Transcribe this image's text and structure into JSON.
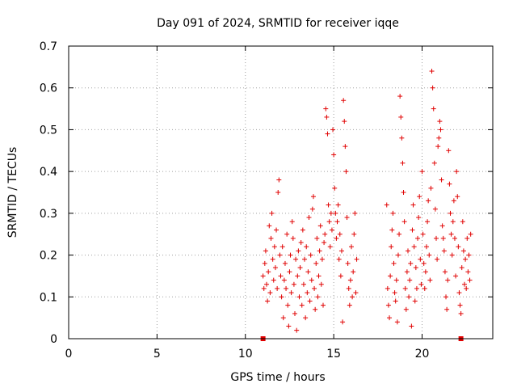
{
  "chart_data": {
    "type": "scatter",
    "title": "Day 091 of 2024, SRMTID for receiver iqqe",
    "xlabel": "GPS time / hours",
    "ylabel": "SRMTID / TECUs",
    "xlim": [
      0,
      24
    ],
    "ylim": [
      0,
      0.7
    ],
    "x_ticks": [
      0,
      5,
      10,
      15,
      20
    ],
    "y_ticks": [
      0,
      0.1,
      0.2,
      0.3,
      0.4,
      0.5,
      0.6,
      0.7
    ],
    "x_tick_labels": [
      "0",
      "5",
      "10",
      "15",
      "20"
    ],
    "y_tick_labels": [
      "0",
      "0.1",
      "0.2",
      "0.3",
      "0.4",
      "0.5",
      "0.6",
      "0.7"
    ],
    "grid": true,
    "marker": "+",
    "color": "#e00000",
    "series": [
      {
        "name": "SRMTID",
        "points": [
          [
            11.0,
            0.15
          ],
          [
            11.05,
            0.12
          ],
          [
            11.1,
            0.18
          ],
          [
            11.15,
            0.21
          ],
          [
            11.2,
            0.13
          ],
          [
            11.25,
            0.09
          ],
          [
            11.3,
            0.16
          ],
          [
            11.35,
            0.27
          ],
          [
            11.4,
            0.11
          ],
          [
            11.45,
            0.24
          ],
          [
            11.5,
            0.3
          ],
          [
            11.55,
            0.19
          ],
          [
            11.6,
            0.14
          ],
          [
            11.65,
            0.22
          ],
          [
            11.7,
            0.17
          ],
          [
            11.75,
            0.26
          ],
          [
            11.8,
            0.12
          ],
          [
            11.85,
            0.35
          ],
          [
            11.9,
            0.38
          ],
          [
            11.95,
            0.2
          ],
          [
            12.0,
            0.15
          ],
          [
            12.05,
            0.1
          ],
          [
            12.1,
            0.22
          ],
          [
            12.15,
            0.05
          ],
          [
            12.2,
            0.14
          ],
          [
            12.25,
            0.18
          ],
          [
            12.3,
            0.12
          ],
          [
            12.35,
            0.25
          ],
          [
            12.4,
            0.08
          ],
          [
            12.45,
            0.03
          ],
          [
            12.5,
            0.16
          ],
          [
            12.55,
            0.2
          ],
          [
            12.6,
            0.11
          ],
          [
            12.65,
            0.28
          ],
          [
            12.7,
            0.24
          ],
          [
            12.75,
            0.13
          ],
          [
            12.8,
            0.06
          ],
          [
            12.85,
            0.19
          ],
          [
            12.9,
            0.02
          ],
          [
            12.95,
            0.15
          ],
          [
            13.0,
            0.21
          ],
          [
            13.05,
            0.1
          ],
          [
            13.1,
            0.17
          ],
          [
            13.15,
            0.23
          ],
          [
            13.2,
            0.08
          ],
          [
            13.25,
            0.26
          ],
          [
            13.3,
            0.13
          ],
          [
            13.35,
            0.19
          ],
          [
            13.4,
            0.05
          ],
          [
            13.45,
            0.22
          ],
          [
            13.5,
            0.11
          ],
          [
            13.55,
            0.16
          ],
          [
            13.6,
            0.29
          ],
          [
            13.65,
            0.09
          ],
          [
            13.7,
            0.2
          ],
          [
            13.75,
            0.14
          ],
          [
            13.8,
            0.31
          ],
          [
            13.85,
            0.34
          ],
          [
            13.9,
            0.12
          ],
          [
            13.95,
            0.07
          ],
          [
            14.0,
            0.18
          ],
          [
            14.05,
            0.24
          ],
          [
            14.1,
            0.1
          ],
          [
            14.15,
            0.15
          ],
          [
            14.2,
            0.21
          ],
          [
            14.25,
            0.27
          ],
          [
            14.3,
            0.13
          ],
          [
            14.35,
            0.19
          ],
          [
            14.4,
            0.08
          ],
          [
            14.45,
            0.23
          ],
          [
            14.5,
            0.25
          ],
          [
            14.55,
            0.55
          ],
          [
            14.6,
            0.53
          ],
          [
            14.65,
            0.49
          ],
          [
            14.7,
            0.32
          ],
          [
            14.75,
            0.28
          ],
          [
            14.8,
            0.22
          ],
          [
            14.85,
            0.3
          ],
          [
            14.9,
            0.26
          ],
          [
            14.95,
            0.5
          ],
          [
            15.0,
            0.44
          ],
          [
            15.05,
            0.36
          ],
          [
            15.1,
            0.3
          ],
          [
            15.15,
            0.24
          ],
          [
            15.2,
            0.28
          ],
          [
            15.25,
            0.32
          ],
          [
            15.3,
            0.19
          ],
          [
            15.35,
            0.25
          ],
          [
            15.4,
            0.15
          ],
          [
            15.45,
            0.21
          ],
          [
            15.5,
            0.04
          ],
          [
            15.55,
            0.57
          ],
          [
            15.6,
            0.52
          ],
          [
            15.65,
            0.46
          ],
          [
            15.7,
            0.4
          ],
          [
            15.75,
            0.29
          ],
          [
            15.8,
            0.18
          ],
          [
            15.85,
            0.12
          ],
          [
            15.9,
            0.08
          ],
          [
            15.95,
            0.14
          ],
          [
            16.0,
            0.22
          ],
          [
            16.05,
            0.1
          ],
          [
            16.1,
            0.16
          ],
          [
            16.15,
            0.25
          ],
          [
            16.2,
            0.3
          ],
          [
            16.25,
            0.11
          ],
          [
            16.3,
            0.19
          ],
          [
            18.0,
            0.32
          ],
          [
            18.05,
            0.12
          ],
          [
            18.1,
            0.08
          ],
          [
            18.15,
            0.05
          ],
          [
            18.2,
            0.15
          ],
          [
            18.25,
            0.22
          ],
          [
            18.3,
            0.26
          ],
          [
            18.35,
            0.3
          ],
          [
            18.4,
            0.18
          ],
          [
            18.45,
            0.11
          ],
          [
            18.5,
            0.09
          ],
          [
            18.55,
            0.14
          ],
          [
            18.6,
            0.04
          ],
          [
            18.65,
            0.2
          ],
          [
            18.7,
            0.25
          ],
          [
            18.75,
            0.58
          ],
          [
            18.8,
            0.53
          ],
          [
            18.85,
            0.48
          ],
          [
            18.9,
            0.42
          ],
          [
            18.95,
            0.35
          ],
          [
            19.0,
            0.28
          ],
          [
            19.05,
            0.12
          ],
          [
            19.1,
            0.07
          ],
          [
            19.15,
            0.16
          ],
          [
            19.2,
            0.21
          ],
          [
            19.25,
            0.1
          ],
          [
            19.3,
            0.14
          ],
          [
            19.35,
            0.18
          ],
          [
            19.4,
            0.03
          ],
          [
            19.45,
            0.26
          ],
          [
            19.5,
            0.32
          ],
          [
            19.55,
            0.22
          ],
          [
            19.6,
            0.09
          ],
          [
            19.65,
            0.17
          ],
          [
            19.7,
            0.12
          ],
          [
            19.75,
            0.24
          ],
          [
            19.8,
            0.29
          ],
          [
            19.85,
            0.34
          ],
          [
            19.9,
            0.19
          ],
          [
            19.95,
            0.13
          ],
          [
            20.0,
            0.4
          ],
          [
            20.05,
            0.25
          ],
          [
            20.1,
            0.18
          ],
          [
            20.15,
            0.12
          ],
          [
            20.2,
            0.16
          ],
          [
            20.25,
            0.22
          ],
          [
            20.3,
            0.28
          ],
          [
            20.35,
            0.33
          ],
          [
            20.4,
            0.2
          ],
          [
            20.45,
            0.14
          ],
          [
            20.5,
            0.36
          ],
          [
            20.55,
            0.64
          ],
          [
            20.6,
            0.6
          ],
          [
            20.65,
            0.55
          ],
          [
            20.7,
            0.42
          ],
          [
            20.75,
            0.31
          ],
          [
            20.8,
            0.24
          ],
          [
            20.85,
            0.19
          ],
          [
            20.9,
            0.46
          ],
          [
            20.95,
            0.48
          ],
          [
            21.0,
            0.52
          ],
          [
            21.05,
            0.5
          ],
          [
            21.1,
            0.38
          ],
          [
            21.15,
            0.27
          ],
          [
            21.2,
            0.24
          ],
          [
            21.25,
            0.21
          ],
          [
            21.3,
            0.16
          ],
          [
            21.35,
            0.1
          ],
          [
            21.4,
            0.07
          ],
          [
            21.45,
            0.14
          ],
          [
            21.5,
            0.45
          ],
          [
            21.55,
            0.37
          ],
          [
            21.6,
            0.3
          ],
          [
            21.65,
            0.25
          ],
          [
            21.7,
            0.2
          ],
          [
            21.75,
            0.28
          ],
          [
            21.8,
            0.33
          ],
          [
            21.85,
            0.24
          ],
          [
            21.9,
            0.15
          ],
          [
            21.95,
            0.4
          ],
          [
            22.0,
            0.34
          ],
          [
            22.05,
            0.22
          ],
          [
            22.1,
            0.11
          ],
          [
            22.15,
            0.08
          ],
          [
            22.2,
            0.06
          ],
          [
            22.25,
            0.17
          ],
          [
            22.3,
            0.28
          ],
          [
            22.35,
            0.21
          ],
          [
            22.4,
            0.13
          ],
          [
            22.45,
            0.19
          ],
          [
            22.5,
            0.12
          ],
          [
            22.55,
            0.24
          ],
          [
            22.6,
            0.16
          ],
          [
            22.65,
            0.2
          ],
          [
            22.7,
            0.14
          ],
          [
            22.75,
            0.25
          ]
        ]
      }
    ],
    "baseline_markers": [
      [
        11.0,
        0.0
      ],
      [
        22.2,
        0.0
      ]
    ]
  }
}
